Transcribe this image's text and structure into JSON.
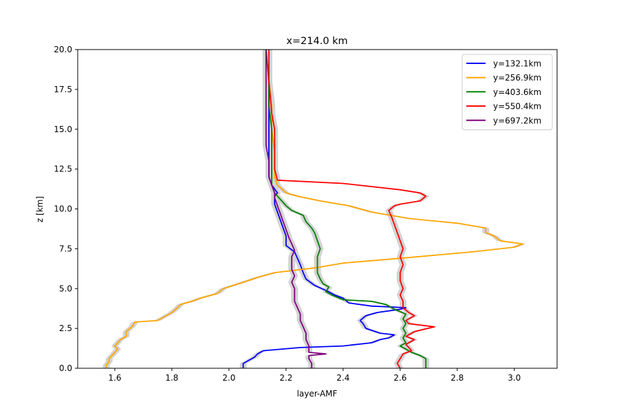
{
  "chart_data": {
    "type": "line",
    "title": "x=214.0 km",
    "xlabel": "layer-AMF",
    "ylabel": "z [km]",
    "xlim": [
      1.47,
      3.15
    ],
    "ylim": [
      0,
      20
    ],
    "x_ticks": [
      1.6,
      1.8,
      2.0,
      2.2,
      2.4,
      2.6,
      2.8,
      3.0
    ],
    "x_tick_labels": [
      "1.6",
      "1.8",
      "2.0",
      "2.2",
      "2.4",
      "2.6",
      "2.8",
      "3.0"
    ],
    "y_ticks": [
      0,
      2.5,
      5,
      7.5,
      10,
      12.5,
      15,
      17.5,
      20
    ],
    "y_tick_labels": [
      "0.0",
      "2.5",
      "5.0",
      "7.5",
      "10.0",
      "12.5",
      "15.0",
      "17.5",
      "20.0"
    ],
    "grid": false,
    "legend_position": "top-right",
    "uncertainty_band_color": "#d3d3d3",
    "series": [
      {
        "name": "y=132.1km",
        "color": "#0000ff",
        "points": [
          [
            2.05,
            0.0
          ],
          [
            2.05,
            0.3
          ],
          [
            2.07,
            0.5
          ],
          [
            2.09,
            0.7
          ],
          [
            2.1,
            0.9
          ],
          [
            2.12,
            1.1
          ],
          [
            2.25,
            1.3
          ],
          [
            2.4,
            1.4
          ],
          [
            2.5,
            1.6
          ],
          [
            2.53,
            1.8
          ],
          [
            2.56,
            1.9
          ],
          [
            2.58,
            2.1
          ],
          [
            2.53,
            2.2
          ],
          [
            2.48,
            2.5
          ],
          [
            2.47,
            2.8
          ],
          [
            2.46,
            3.0
          ],
          [
            2.48,
            3.3
          ],
          [
            2.52,
            3.5
          ],
          [
            2.6,
            3.7
          ],
          [
            2.62,
            3.8
          ],
          [
            2.5,
            3.9
          ],
          [
            2.42,
            4.1
          ],
          [
            2.4,
            4.4
          ],
          [
            2.37,
            4.6
          ],
          [
            2.35,
            4.8
          ],
          [
            2.3,
            5.2
          ],
          [
            2.27,
            5.6
          ],
          [
            2.26,
            6.0
          ],
          [
            2.25,
            6.5
          ],
          [
            2.24,
            6.9
          ],
          [
            2.23,
            7.3
          ],
          [
            2.2,
            7.7
          ],
          [
            2.2,
            8.3
          ],
          [
            2.19,
            8.8
          ],
          [
            2.18,
            9.3
          ],
          [
            2.17,
            9.8
          ],
          [
            2.16,
            10.3
          ],
          [
            2.16,
            10.8
          ],
          [
            2.17,
            11.0
          ],
          [
            2.15,
            11.5
          ],
          [
            2.14,
            12.0
          ],
          [
            2.14,
            12.5
          ],
          [
            2.14,
            13.5
          ],
          [
            2.14,
            15.0
          ],
          [
            2.14,
            16.5
          ],
          [
            2.14,
            18.0
          ],
          [
            2.13,
            20.0
          ]
        ]
      },
      {
        "name": "y=256.9km",
        "color": "#ffa500",
        "points": [
          [
            1.57,
            0.0
          ],
          [
            1.57,
            0.2
          ],
          [
            1.58,
            0.4
          ],
          [
            1.58,
            0.6
          ],
          [
            1.59,
            0.8
          ],
          [
            1.6,
            1.0
          ],
          [
            1.61,
            1.2
          ],
          [
            1.6,
            1.4
          ],
          [
            1.61,
            1.6
          ],
          [
            1.62,
            1.8
          ],
          [
            1.64,
            2.0
          ],
          [
            1.64,
            2.3
          ],
          [
            1.66,
            2.6
          ],
          [
            1.67,
            2.9
          ],
          [
            1.75,
            3.0
          ],
          [
            1.78,
            3.3
          ],
          [
            1.8,
            3.5
          ],
          [
            1.82,
            3.8
          ],
          [
            1.83,
            4.0
          ],
          [
            1.87,
            4.2
          ],
          [
            1.9,
            4.4
          ],
          [
            1.96,
            4.7
          ],
          [
            1.98,
            5.0
          ],
          [
            2.05,
            5.4
          ],
          [
            2.1,
            5.7
          ],
          [
            2.16,
            6.0
          ],
          [
            2.3,
            6.3
          ],
          [
            2.4,
            6.6
          ],
          [
            2.6,
            6.9
          ],
          [
            2.85,
            7.3
          ],
          [
            3.0,
            7.6
          ],
          [
            3.03,
            7.8
          ],
          [
            2.95,
            8.0
          ],
          [
            2.93,
            8.3
          ],
          [
            2.9,
            8.5
          ],
          [
            2.9,
            8.8
          ],
          [
            2.8,
            9.1
          ],
          [
            2.63,
            9.4
          ],
          [
            2.5,
            9.8
          ],
          [
            2.42,
            10.2
          ],
          [
            2.32,
            10.5
          ],
          [
            2.24,
            10.8
          ],
          [
            2.2,
            11.0
          ],
          [
            2.17,
            11.5
          ],
          [
            2.16,
            12.0
          ],
          [
            2.16,
            12.5
          ],
          [
            2.16,
            13.5
          ],
          [
            2.15,
            15.0
          ],
          [
            2.15,
            16.5
          ],
          [
            2.14,
            18.0
          ],
          [
            2.13,
            20.0
          ]
        ]
      },
      {
        "name": "y=403.6km",
        "color": "#008000",
        "points": [
          [
            2.69,
            0.0
          ],
          [
            2.69,
            0.3
          ],
          [
            2.69,
            0.6
          ],
          [
            2.67,
            0.8
          ],
          [
            2.64,
            1.0
          ],
          [
            2.62,
            1.2
          ],
          [
            2.6,
            1.4
          ],
          [
            2.62,
            1.6
          ],
          [
            2.61,
            1.9
          ],
          [
            2.62,
            2.2
          ],
          [
            2.61,
            2.5
          ],
          [
            2.62,
            2.8
          ],
          [
            2.61,
            3.1
          ],
          [
            2.62,
            3.4
          ],
          [
            2.58,
            3.7
          ],
          [
            2.55,
            4.0
          ],
          [
            2.5,
            4.2
          ],
          [
            2.4,
            4.3
          ],
          [
            2.36,
            4.6
          ],
          [
            2.34,
            4.8
          ],
          [
            2.35,
            5.1
          ],
          [
            2.33,
            5.3
          ],
          [
            2.32,
            5.6
          ],
          [
            2.31,
            6.0
          ],
          [
            2.31,
            6.5
          ],
          [
            2.31,
            7.0
          ],
          [
            2.32,
            7.5
          ],
          [
            2.31,
            8.0
          ],
          [
            2.3,
            8.5
          ],
          [
            2.29,
            8.8
          ],
          [
            2.27,
            9.2
          ],
          [
            2.26,
            9.6
          ],
          [
            2.22,
            9.9
          ],
          [
            2.2,
            10.2
          ],
          [
            2.18,
            10.6
          ],
          [
            2.16,
            11.0
          ],
          [
            2.15,
            11.5
          ],
          [
            2.15,
            12.0
          ],
          [
            2.15,
            13.5
          ],
          [
            2.15,
            15.0
          ],
          [
            2.14,
            16.5
          ],
          [
            2.14,
            18.0
          ],
          [
            2.13,
            20.0
          ]
        ]
      },
      {
        "name": "y=550.4km",
        "color": "#ff0000",
        "points": [
          [
            2.6,
            0.0
          ],
          [
            2.59,
            0.3
          ],
          [
            2.6,
            0.6
          ],
          [
            2.61,
            0.9
          ],
          [
            2.64,
            1.1
          ],
          [
            2.63,
            1.3
          ],
          [
            2.62,
            1.5
          ],
          [
            2.65,
            1.8
          ],
          [
            2.62,
            2.0
          ],
          [
            2.65,
            2.3
          ],
          [
            2.72,
            2.6
          ],
          [
            2.63,
            2.8
          ],
          [
            2.62,
            3.0
          ],
          [
            2.65,
            3.3
          ],
          [
            2.63,
            3.5
          ],
          [
            2.61,
            3.8
          ],
          [
            2.61,
            4.2
          ],
          [
            2.6,
            4.6
          ],
          [
            2.61,
            5.0
          ],
          [
            2.6,
            5.5
          ],
          [
            2.6,
            6.0
          ],
          [
            2.61,
            6.5
          ],
          [
            2.6,
            7.0
          ],
          [
            2.61,
            7.5
          ],
          [
            2.6,
            8.0
          ],
          [
            2.59,
            8.5
          ],
          [
            2.58,
            9.0
          ],
          [
            2.57,
            9.5
          ],
          [
            2.56,
            9.9
          ],
          [
            2.58,
            10.2
          ],
          [
            2.6,
            10.3
          ],
          [
            2.67,
            10.5
          ],
          [
            2.69,
            10.8
          ],
          [
            2.67,
            11.0
          ],
          [
            2.6,
            11.2
          ],
          [
            2.4,
            11.6
          ],
          [
            2.17,
            11.8
          ],
          [
            2.16,
            12.5
          ],
          [
            2.16,
            13.5
          ],
          [
            2.16,
            15.0
          ],
          [
            2.15,
            16.0
          ],
          [
            2.14,
            18.0
          ],
          [
            2.14,
            20.0
          ]
        ]
      },
      {
        "name": "y=697.2km",
        "color": "#800080",
        "points": [
          [
            2.29,
            0.0
          ],
          [
            2.29,
            0.3
          ],
          [
            2.28,
            0.6
          ],
          [
            2.28,
            0.8
          ],
          [
            2.34,
            0.9
          ],
          [
            2.28,
            1.0
          ],
          [
            2.28,
            1.4
          ],
          [
            2.27,
            1.8
          ],
          [
            2.27,
            2.2
          ],
          [
            2.26,
            2.6
          ],
          [
            2.25,
            3.0
          ],
          [
            2.25,
            3.4
          ],
          [
            2.24,
            3.8
          ],
          [
            2.23,
            4.2
          ],
          [
            2.23,
            4.6
          ],
          [
            2.23,
            5.0
          ],
          [
            2.22,
            5.4
          ],
          [
            2.23,
            5.8
          ],
          [
            2.22,
            6.2
          ],
          [
            2.22,
            6.6
          ],
          [
            2.22,
            7.0
          ],
          [
            2.23,
            7.4
          ],
          [
            2.22,
            7.8
          ],
          [
            2.21,
            8.2
          ],
          [
            2.2,
            8.7
          ],
          [
            2.19,
            9.2
          ],
          [
            2.18,
            9.7
          ],
          [
            2.17,
            10.2
          ],
          [
            2.16,
            10.7
          ],
          [
            2.16,
            11.0
          ],
          [
            2.15,
            11.5
          ],
          [
            2.14,
            12.0
          ],
          [
            2.14,
            13.0
          ],
          [
            2.13,
            14.0
          ],
          [
            2.13,
            15.0
          ],
          [
            2.13,
            16.5
          ],
          [
            2.13,
            18.0
          ],
          [
            2.13,
            20.0
          ]
        ]
      }
    ]
  }
}
